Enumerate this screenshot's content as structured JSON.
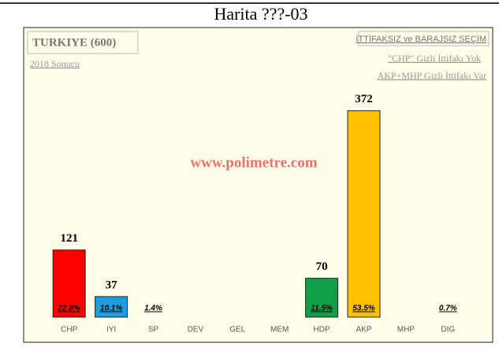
{
  "chart_data": {
    "type": "bar",
    "title": "Harita ???-03",
    "box_title": "TURKIYE (600)",
    "subtitle": "2018 Sonucu",
    "annotations": [
      "İTTİFAKSIZ ve BARAJSIZ SEÇİM",
      "\"CHP\" Gizli İttifakı Yok",
      "AKP+MHP Gizli İttifakı Var"
    ],
    "watermark": "www.polimetre.com",
    "categories": [
      "CHP",
      "IYI",
      "SP",
      "DEV",
      "GEL",
      "MEM",
      "HDP",
      "AKP",
      "MHP",
      "DIG"
    ],
    "values": [
      121,
      37,
      0,
      0,
      0,
      0,
      70,
      372,
      0,
      0
    ],
    "colors": [
      "#ff0000",
      "#1a9fe0",
      "#cccccc",
      "#cccccc",
      "#cccccc",
      "#cccccc",
      "#10a04a",
      "#ffc000",
      "#cccccc",
      "#cccccc"
    ],
    "percent": {
      "values": [
        22.8,
        10.1,
        1.4,
        null,
        null,
        null,
        11.5,
        53.5,
        null,
        0.7
      ],
      "value_labels": [
        "22.8%",
        "10.1%",
        "1.4%",
        null,
        null,
        null,
        "11.5%",
        "53.5%",
        null,
        "0.7%"
      ]
    },
    "ylim": [
      0,
      400
    ]
  }
}
